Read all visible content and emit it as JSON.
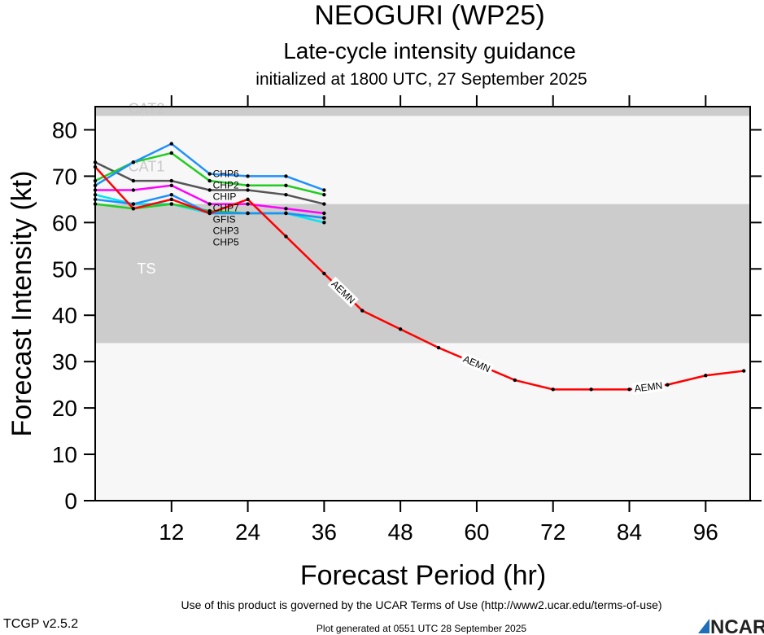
{
  "header": {
    "title": "NEOGURI (WP25)",
    "subtitle": "Late-cycle intensity guidance",
    "init": "initialized at 1800 UTC, 27 September 2025"
  },
  "footer": {
    "terms": "Use of this product is governed by the UCAR Terms of Use (http://www2.ucar.edu/terms-of-use)",
    "version": "TCGP v2.5.2",
    "generated": "Plot generated at 0551 UTC   28 September 2025",
    "logo": "NCAR"
  },
  "chart_data": {
    "type": "line",
    "xlabel": "Forecast Period (hr)",
    "ylabel": "Forecast Intensity (kt)",
    "xlim": [
      0,
      103
    ],
    "ylim": [
      0,
      85
    ],
    "xticks": [
      12,
      24,
      36,
      48,
      60,
      72,
      84,
      96
    ],
    "yticks": [
      0,
      10,
      20,
      30,
      40,
      50,
      60,
      70,
      80
    ],
    "bands": [
      {
        "label": "TS",
        "from": 34,
        "to": 64,
        "color": "#cccccc"
      },
      {
        "label": "CAT1",
        "from": 64,
        "to": 83,
        "color": "#f7f7f7"
      },
      {
        "label": "CAT2",
        "from": 83,
        "to": 96,
        "color": "#cccccc"
      }
    ],
    "series": [
      {
        "name": "AEMN",
        "color": "#ff0000",
        "x": [
          0,
          6,
          12,
          18,
          24,
          30,
          36,
          42,
          48,
          54,
          60,
          66,
          72,
          78,
          84,
          90,
          96,
          102
        ],
        "y": [
          72,
          63,
          65,
          62,
          65,
          57,
          49,
          41,
          37,
          33,
          29.5,
          26,
          24,
          24,
          24,
          25,
          27,
          28
        ],
        "labels_at": [
          39,
          60,
          87
        ]
      },
      {
        "name": "CHP6",
        "color": "#1e90ff",
        "x": [
          0,
          6,
          12,
          18,
          24,
          30,
          36
        ],
        "y": [
          68,
          73,
          77,
          70.5,
          70,
          70,
          67
        ]
      },
      {
        "name": "CHP2",
        "color": "#22cc22",
        "x": [
          0,
          6,
          12,
          18,
          24,
          30,
          36
        ],
        "y": [
          69,
          73,
          75,
          69,
          68,
          68,
          66
        ]
      },
      {
        "name": "CHIP",
        "color": "#555555",
        "x": [
          0,
          6,
          12,
          18,
          24,
          30,
          36
        ],
        "y": [
          73,
          69,
          69,
          67,
          67,
          66,
          64
        ]
      },
      {
        "name": "CHP7",
        "color": "#ff00ff",
        "x": [
          0,
          6,
          12,
          18,
          24,
          30,
          36
        ],
        "y": [
          67,
          67,
          68,
          64,
          64,
          63,
          62
        ]
      },
      {
        "name": "CHP3",
        "color": "#1e90ff",
        "x": [
          0,
          6,
          12,
          18,
          24,
          30,
          36
        ],
        "y": [
          65,
          64,
          66,
          62,
          62,
          62,
          61
        ]
      },
      {
        "name": "GFIS",
        "color": "#22cc22",
        "x": [
          0,
          6,
          12,
          18,
          24,
          30,
          36
        ],
        "y": [
          64,
          63,
          64,
          62.5,
          62,
          62,
          61
        ]
      },
      {
        "name": "CHP5",
        "color": "#00e5ee",
        "x": [
          0,
          6,
          12,
          18,
          24,
          30,
          36
        ],
        "y": [
          66,
          64,
          64,
          62,
          62,
          62,
          60
        ]
      }
    ]
  }
}
